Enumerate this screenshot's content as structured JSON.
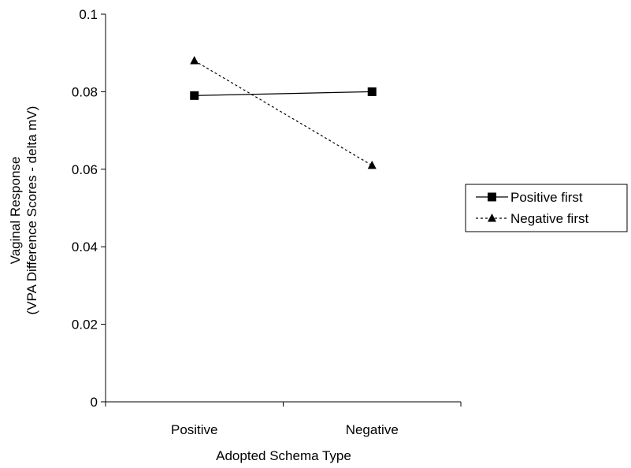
{
  "chart_data": {
    "type": "line",
    "categories": [
      "Positive",
      "Negative"
    ],
    "series": [
      {
        "name": "Positive first",
        "values": [
          0.079,
          0.08
        ],
        "line_style": "solid",
        "marker": "square"
      },
      {
        "name": "Negative first",
        "values": [
          0.088,
          0.061
        ],
        "line_style": "dotted",
        "marker": "triangle"
      }
    ],
    "title": "",
    "xlabel": "Adopted Schema Type",
    "ylabel_lines": [
      "Vaginal Response",
      "(VPA Difference Scores - delta mV)"
    ],
    "ylim": [
      0,
      0.1
    ],
    "yticks": [
      0,
      0.02,
      0.04,
      0.06,
      0.08,
      0.1
    ],
    "ytick_labels": [
      "0",
      "0.02",
      "0.04",
      "0.06",
      "0.08",
      "0.1"
    ],
    "grid": false,
    "legend_position": "right",
    "line_color": "#000000"
  }
}
